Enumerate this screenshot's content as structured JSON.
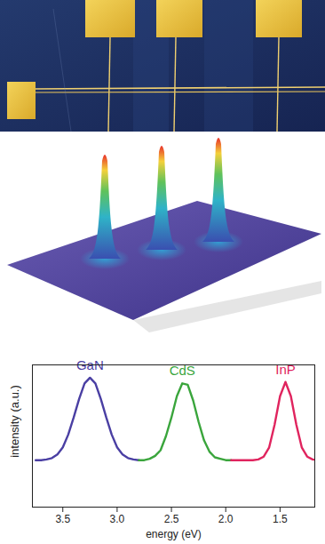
{
  "chart_data": {
    "type": "line",
    "x_label": "energy (eV)",
    "y_label": "intensity (a.u.)",
    "x": [
      3.75,
      3.7,
      3.65,
      3.6,
      3.55,
      3.5,
      3.45,
      3.4,
      3.35,
      3.3,
      3.25,
      3.2,
      3.15,
      3.1,
      3.05,
      3.0,
      2.95,
      2.9,
      2.85,
      2.8,
      2.75,
      2.7,
      2.65,
      2.6,
      2.55,
      2.5,
      2.45,
      2.4,
      2.35,
      2.3,
      2.25,
      2.2,
      2.15,
      2.1,
      2.05,
      2.0,
      1.95,
      1.9,
      1.85,
      1.8,
      1.75,
      1.7,
      1.65,
      1.6,
      1.55,
      1.5,
      1.45,
      1.4,
      1.35,
      1.3,
      1.25,
      1.2,
      1.15
    ],
    "series": [
      {
        "name": "GaN",
        "color": "#4a3fa3",
        "values": [
          0.33,
          0.33,
          0.335,
          0.345,
          0.37,
          0.42,
          0.51,
          0.63,
          0.76,
          0.87,
          0.91,
          0.87,
          0.76,
          0.63,
          0.51,
          0.42,
          0.37,
          0.345,
          0.335,
          0.33,
          null,
          null,
          null,
          null,
          null,
          null,
          null,
          null,
          null,
          null,
          null,
          null,
          null,
          null,
          null,
          null,
          null,
          null,
          null,
          null,
          null,
          null,
          null,
          null,
          null,
          null,
          null,
          null,
          null,
          null,
          null,
          null,
          null
        ]
      },
      {
        "name": "CdS",
        "color": "#3aa53c",
        "values": [
          null,
          null,
          null,
          null,
          null,
          null,
          null,
          null,
          null,
          null,
          null,
          null,
          null,
          null,
          null,
          null,
          null,
          null,
          null,
          0.33,
          0.33,
          0.34,
          0.36,
          0.4,
          0.5,
          0.63,
          0.78,
          0.87,
          0.86,
          0.75,
          0.6,
          0.47,
          0.39,
          0.35,
          0.34,
          0.33,
          0.33,
          null,
          null,
          null,
          null,
          null,
          null,
          null,
          null,
          null,
          null,
          null,
          null,
          null,
          null,
          null,
          null
        ]
      },
      {
        "name": "InP",
        "color": "#e0245e",
        "values": [
          null,
          null,
          null,
          null,
          null,
          null,
          null,
          null,
          null,
          null,
          null,
          null,
          null,
          null,
          null,
          null,
          null,
          null,
          null,
          null,
          null,
          null,
          null,
          null,
          null,
          null,
          null,
          null,
          null,
          null,
          null,
          null,
          null,
          null,
          null,
          null,
          0.33,
          0.33,
          0.33,
          0.33,
          0.33,
          0.335,
          0.355,
          0.42,
          0.58,
          0.78,
          0.88,
          0.78,
          0.58,
          0.42,
          0.355,
          0.335,
          0.33
        ]
      }
    ],
    "xlim": [
      3.78,
      1.18
    ],
    "xticks": [
      3.5,
      {
        "value": 3,
        "label": "3.0"
      },
      2.5,
      {
        "value": 2,
        "label": "2.0"
      },
      1.5
    ],
    "ylim": [
      0,
      1
    ],
    "grid": false,
    "tick_labels": "x"
  }
}
